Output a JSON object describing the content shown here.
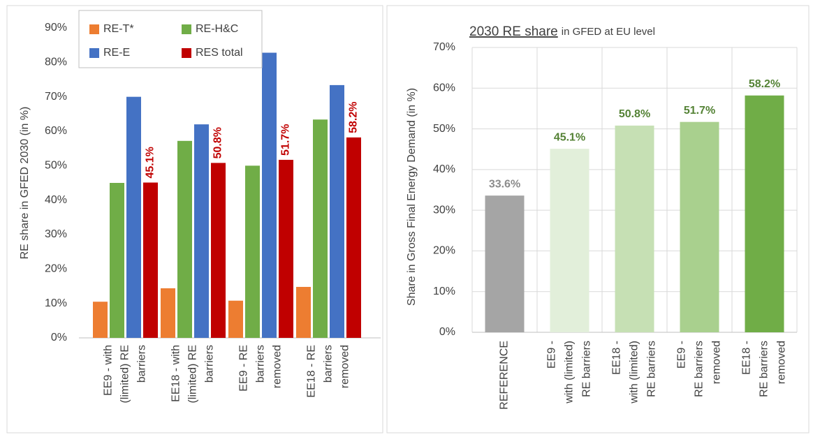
{
  "chart_data": [
    {
      "type": "grouped_bar",
      "ylabel": "RE share in GFED 2030  (in %)",
      "categories": [
        [
          "EE9 - with",
          "(limited) RE",
          "barriers"
        ],
        [
          "EE18 - with",
          "(limited) RE",
          "barriers"
        ],
        [
          "EE9 - RE",
          "barriers",
          "removed"
        ],
        [
          "EE18 - RE",
          "barriers",
          "removed"
        ]
      ],
      "series": [
        {
          "name": "RE-T*",
          "color": "#ed7d31",
          "values": [
            10.5,
            14.4,
            10.8,
            14.8
          ]
        },
        {
          "name": "RE-H&C",
          "color": "#70ad47",
          "values": [
            45,
            57.2,
            50,
            63.4
          ]
        },
        {
          "name": "RE-E",
          "color": "#4472c4",
          "values": [
            70,
            62,
            82.8,
            73.4
          ]
        },
        {
          "name": "RES total",
          "color": "#c00000",
          "values": [
            45.1,
            50.8,
            51.7,
            58.2
          ],
          "value_labels": [
            "45.1%",
            "50.8%",
            "51.7%",
            "58.2%"
          ]
        }
      ],
      "ylim": [
        0,
        90
      ],
      "yticks": [
        {
          "value": 0,
          "label": "0%"
        },
        {
          "value": 10,
          "label": "10%"
        },
        {
          "value": 20,
          "label": "20%"
        },
        {
          "value": 30,
          "label": "30%"
        },
        {
          "value": 40,
          "label": "40%"
        },
        {
          "value": 50,
          "label": "50%"
        },
        {
          "value": 60,
          "label": "60%"
        },
        {
          "value": 70,
          "label": "70%"
        },
        {
          "value": 80,
          "label": "80%"
        },
        {
          "value": 90,
          "label": "90%"
        }
      ],
      "grid": false,
      "legend": "top"
    },
    {
      "type": "bar",
      "title": "2030 RE share",
      "subtitle": "in GFED at EU level",
      "ylabel": "Share in Gross Final Energy Demand (in %)",
      "categories": [
        [
          "REFERENCE"
        ],
        [
          "EE9 -",
          "with (limited)",
          "RE barriers"
        ],
        [
          "EE18 -",
          "with (limited)",
          "RE barriers"
        ],
        [
          "EE9 -",
          "RE barriers",
          "removed"
        ],
        [
          "EE18 -",
          "RE barriers",
          "removed"
        ]
      ],
      "values": [
        33.6,
        45.1,
        50.8,
        51.7,
        58.2
      ],
      "value_labels": [
        "33.6%",
        "45.1%",
        "50.8%",
        "51.7%",
        "58.2%"
      ],
      "colors": [
        "#a5a5a5",
        "#e2efda",
        "#c6e0b4",
        "#a9d08e",
        "#70ad47"
      ],
      "label_colors": [
        "#8c8c8c",
        "#548235",
        "#548235",
        "#548235",
        "#548235"
      ],
      "ylim": [
        0,
        70
      ],
      "yticks": [
        {
          "value": 0,
          "label": "0%"
        },
        {
          "value": 10,
          "label": "10%"
        },
        {
          "value": 20,
          "label": "20%"
        },
        {
          "value": 30,
          "label": "30%"
        },
        {
          "value": 40,
          "label": "40%"
        },
        {
          "value": 50,
          "label": "50%"
        },
        {
          "value": 60,
          "label": "60%"
        },
        {
          "value": 70,
          "label": "70%"
        }
      ],
      "grid": true
    }
  ]
}
